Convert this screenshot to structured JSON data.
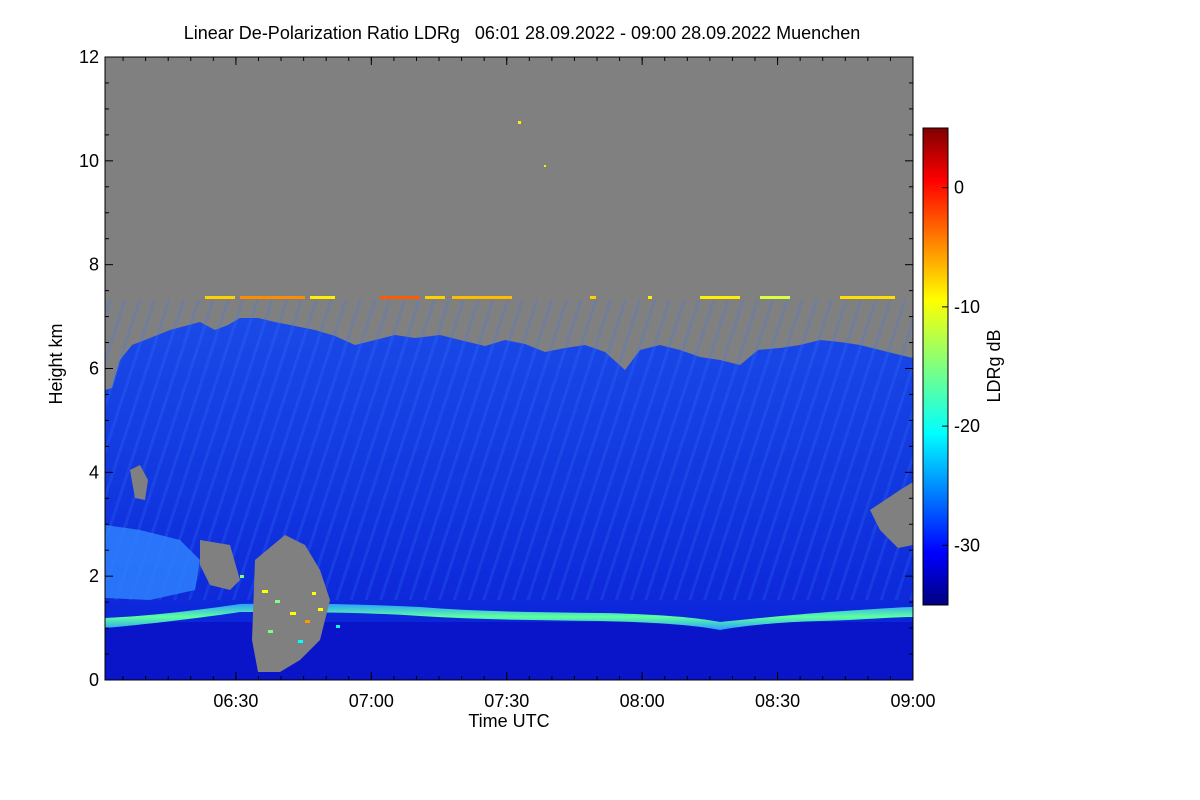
{
  "chart_data": {
    "type": "heatmap",
    "title": "Linear De-Polarization Ratio LDRg   06:01 28.09.2022 - 09:00 28.09.2022 Muenchen",
    "xlabel": "Time UTC",
    "ylabel": "Height km",
    "xlim": [
      "06:01",
      "09:00"
    ],
    "ylim": [
      0,
      12
    ],
    "x_ticks": [
      "06:30",
      "07:00",
      "07:30",
      "08:00",
      "08:30",
      "09:00"
    ],
    "y_ticks": [
      0,
      2,
      4,
      6,
      8,
      10,
      12
    ],
    "colorbar": {
      "label": "LDRg dB",
      "range": [
        -35,
        5
      ],
      "ticks": [
        0,
        -10,
        -20,
        -30
      ],
      "colormap": "jet"
    },
    "background_color": "#808080",
    "features": {
      "cloud_top_km": 6.3,
      "cloud_base_km": 5.5,
      "ice_layer_km": 7.3,
      "melting_layer_km": 1.2
    }
  }
}
